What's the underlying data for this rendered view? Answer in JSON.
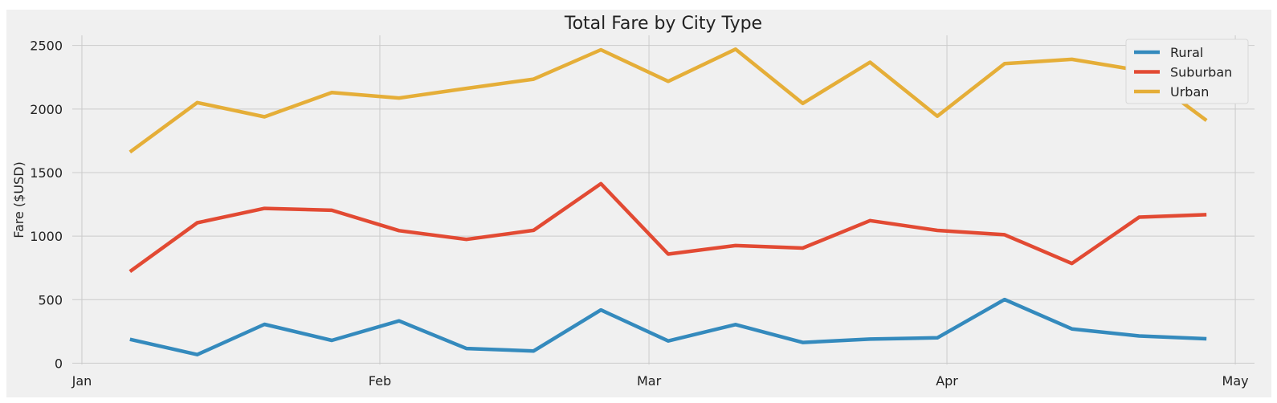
{
  "chart_data": {
    "type": "line",
    "title": "Total Fare by City Type",
    "xlabel": "",
    "ylabel": "Fare ($USD)",
    "x_ticks": [
      "Jan",
      "Feb",
      "Mar",
      "Apr",
      "May"
    ],
    "x_tick_dates": [
      "2019-01-01",
      "2019-02-01",
      "2019-03-01",
      "2019-04-01",
      "2019-05-01"
    ],
    "x": [
      "2019-01-06",
      "2019-01-13",
      "2019-01-20",
      "2019-01-27",
      "2019-02-03",
      "2019-02-10",
      "2019-02-17",
      "2019-02-24",
      "2019-03-03",
      "2019-03-10",
      "2019-03-17",
      "2019-03-24",
      "2019-03-31",
      "2019-04-07",
      "2019-04-14",
      "2019-04-21",
      "2019-04-28"
    ],
    "xlim": [
      "2018-12-31",
      "2019-05-03"
    ],
    "y_ticks": [
      0,
      500,
      1000,
      1500,
      2000,
      2500
    ],
    "ylim": [
      -10,
      2580
    ],
    "grid": true,
    "legend_position": "top-right",
    "series": [
      {
        "name": "Rural",
        "color": "#348ABD",
        "values": [
          187.92,
          67.65,
          306.0,
          179.69,
          333.08,
          115.8,
          95.82,
          419.06,
          175.14,
          303.94,
          163.39,
          189.76,
          199.42,
          501.24,
          269.79,
          214.14,
          191.85
        ]
      },
      {
        "name": "Suburban",
        "color": "#E24A33",
        "values": [
          721.6,
          1105.13,
          1218.2,
          1203.28,
          1042.79,
          974.34,
          1045.5,
          1412.74,
          858.46,
          925.27,
          905.87,
          1122.2,
          1045.06,
          1010.73,
          784.82,
          1149.27,
          1169.04
        ]
      },
      {
        "name": "Urban",
        "color": "#E5AE38",
        "values": [
          1661.68,
          2050.43,
          1939.02,
          2129.51,
          2086.94,
          2162.64,
          2235.07,
          2466.29,
          2218.2,
          2470.93,
          2044.42,
          2368.37,
          1943.89,
          2356.7,
          2390.81,
          2303.8,
          1909.51
        ]
      }
    ]
  }
}
